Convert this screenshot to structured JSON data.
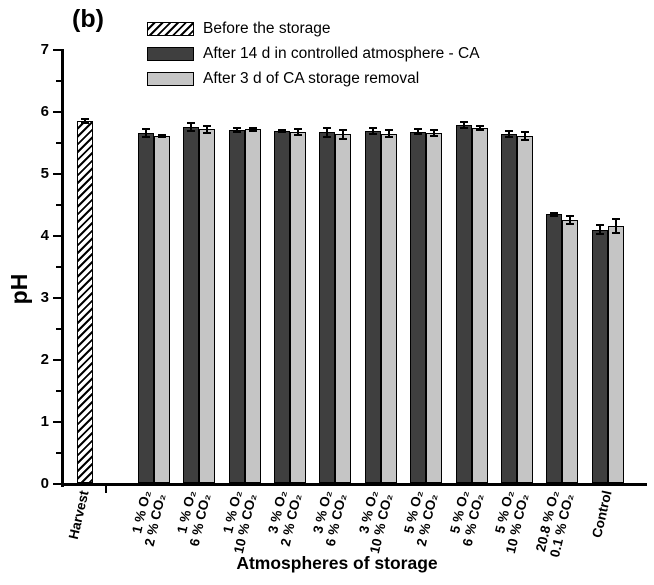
{
  "panel_label": "(b)",
  "chart_data": {
    "type": "bar",
    "title": "(b)",
    "xlabel": "Atmospheres of storage",
    "ylabel": "pH",
    "ylim": [
      0,
      7
    ],
    "y_major_tick_step": 1,
    "y_minor_tick_step": 0.5,
    "grid": false,
    "legend_position": "top-left-inside",
    "error_bars": true,
    "colors": {
      "before_fill": "hatched-black-diagonal-on-white",
      "ca14_fill": "#3f3f3f",
      "removal3_fill": "#c5c5c5",
      "outline": "#000000"
    },
    "legend": [
      {
        "series": "before",
        "label": "Before the storage"
      },
      {
        "series": "ca14",
        "label": "After 14 d in controlled atmosphere - CA"
      },
      {
        "series": "removal3",
        "label": "After 3 d of CA storage removal"
      }
    ],
    "categories": [
      {
        "label_lines": [
          "Harvest"
        ],
        "bars": [
          {
            "series": "before",
            "value": 5.85,
            "error": 0.03
          }
        ]
      },
      {
        "label_lines": [
          "1 % O₂",
          "2 % CO₂"
        ],
        "bars": [
          {
            "series": "ca14",
            "value": 5.66,
            "error": 0.07
          },
          {
            "series": "removal3",
            "value": 5.61,
            "error": 0.02
          }
        ]
      },
      {
        "label_lines": [
          "1 % O₂",
          "6 % CO₂"
        ],
        "bars": [
          {
            "series": "ca14",
            "value": 5.76,
            "error": 0.06
          },
          {
            "series": "removal3",
            "value": 5.72,
            "error": 0.06
          }
        ]
      },
      {
        "label_lines": [
          "1 % O₂",
          "10 % CO₂"
        ],
        "bars": [
          {
            "series": "ca14",
            "value": 5.71,
            "error": 0.03
          },
          {
            "series": "removal3",
            "value": 5.72,
            "error": 0.02
          }
        ]
      },
      {
        "label_lines": [
          "3 % O₂",
          "2 % CO₂"
        ],
        "bars": [
          {
            "series": "ca14",
            "value": 5.69,
            "error": 0.02
          },
          {
            "series": "removal3",
            "value": 5.68,
            "error": 0.05
          }
        ]
      },
      {
        "label_lines": [
          "3 % O₂",
          "6 % CO₂"
        ],
        "bars": [
          {
            "series": "ca14",
            "value": 5.67,
            "error": 0.08
          },
          {
            "series": "removal3",
            "value": 5.64,
            "error": 0.07
          }
        ]
      },
      {
        "label_lines": [
          "3 % O₂",
          "10 % CO₂"
        ],
        "bars": [
          {
            "series": "ca14",
            "value": 5.69,
            "error": 0.05
          },
          {
            "series": "removal3",
            "value": 5.65,
            "error": 0.06
          }
        ]
      },
      {
        "label_lines": [
          "5 % O₂",
          "2 % CO₂"
        ],
        "bars": [
          {
            "series": "ca14",
            "value": 5.68,
            "error": 0.04
          },
          {
            "series": "removal3",
            "value": 5.66,
            "error": 0.05
          }
        ]
      },
      {
        "label_lines": [
          "5 % O₂",
          "6 % CO₂"
        ],
        "bars": [
          {
            "series": "ca14",
            "value": 5.79,
            "error": 0.05
          },
          {
            "series": "removal3",
            "value": 5.74,
            "error": 0.03
          }
        ]
      },
      {
        "label_lines": [
          "5 % O₂",
          "10 % CO₂"
        ],
        "bars": [
          {
            "series": "ca14",
            "value": 5.64,
            "error": 0.05
          },
          {
            "series": "removal3",
            "value": 5.61,
            "error": 0.06
          }
        ]
      },
      {
        "label_lines": [
          "20.8 % O₂",
          "0.1 % CO₂"
        ],
        "bars": [
          {
            "series": "ca14",
            "value": 4.35,
            "error": 0.02
          },
          {
            "series": "removal3",
            "value": 4.26,
            "error": 0.07
          }
        ]
      },
      {
        "label_lines": [
          "Control"
        ],
        "bars": [
          {
            "series": "ca14",
            "value": 4.1,
            "error": 0.07
          },
          {
            "series": "removal3",
            "value": 4.16,
            "error": 0.11
          }
        ]
      }
    ]
  }
}
